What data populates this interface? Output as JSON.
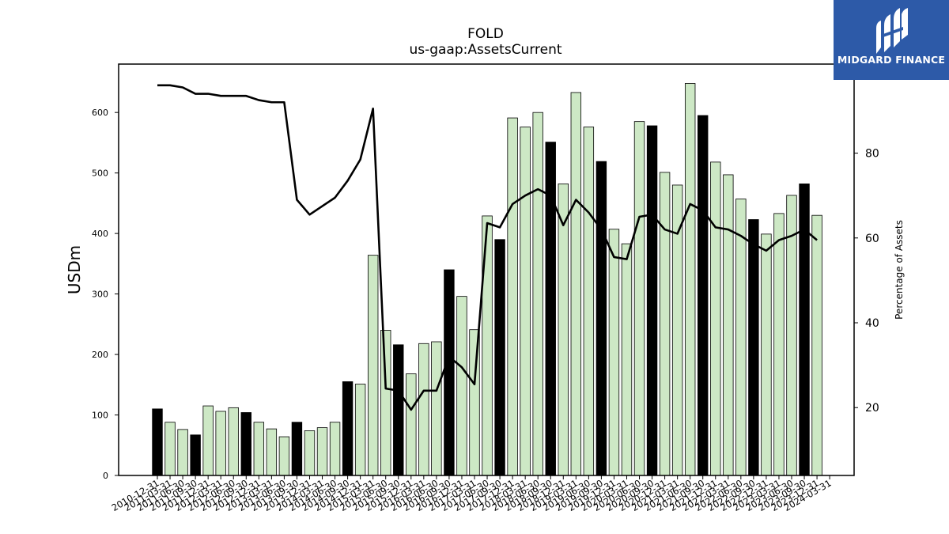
{
  "chart_data": {
    "type": "bar+line",
    "title": "FOLD",
    "subtitle": "us-gaap:AssetsCurrent",
    "ylabel": "USDm",
    "y2label": "Percentage of Assets",
    "ylim": [
      0,
      680
    ],
    "y2lim": [
      4,
      101
    ],
    "yticks": [
      0,
      100,
      200,
      300,
      400,
      500,
      600
    ],
    "y2ticks": [
      20,
      40,
      60,
      80
    ],
    "categories": [
      "2010-12-31",
      "2011-03-31",
      "2011-06-30",
      "2011-09-30",
      "2011-12-31",
      "2012-03-31",
      "2012-06-30",
      "2012-09-30",
      "2012-12-31",
      "2013-03-31",
      "2013-06-30",
      "2013-09-30",
      "2013-12-31",
      "2014-03-31",
      "2014-06-30",
      "2014-09-30",
      "2014-12-31",
      "2015-03-31",
      "2015-06-30",
      "2015-09-30",
      "2015-12-31",
      "2016-03-31",
      "2016-06-30",
      "2016-09-30",
      "2016-12-31",
      "2017-03-31",
      "2017-06-30",
      "2017-09-30",
      "2017-12-31",
      "2018-03-31",
      "2018-06-30",
      "2018-09-30",
      "2018-12-31",
      "2019-03-31",
      "2019-06-30",
      "2019-09-30",
      "2019-12-31",
      "2020-03-31",
      "2020-06-30",
      "2020-09-30",
      "2020-12-31",
      "2021-03-31",
      "2021-06-30",
      "2021-09-30",
      "2021-12-31",
      "2022-03-31",
      "2022-06-30",
      "2022-09-30",
      "2022-12-31",
      "2023-03-31",
      "2023-06-30",
      "2023-09-30",
      "2023-12-31",
      "2024-03-31"
    ],
    "values": [
      110,
      88,
      76,
      67,
      115,
      106,
      112,
      104,
      88,
      77,
      64,
      88,
      74,
      79,
      88,
      155,
      151,
      364,
      240,
      216,
      168,
      218,
      221,
      340,
      296,
      241,
      429,
      390,
      591,
      576,
      600,
      551,
      482,
      633,
      576,
      519,
      407,
      383,
      585,
      578,
      501,
      480,
      648,
      595,
      518,
      497,
      457,
      423,
      399,
      433,
      463,
      482,
      430,
      0
    ],
    "highlight": [
      true,
      false,
      false,
      true,
      false,
      false,
      false,
      true,
      false,
      false,
      false,
      true,
      false,
      false,
      false,
      true,
      false,
      false,
      false,
      true,
      false,
      false,
      false,
      true,
      false,
      false,
      false,
      true,
      false,
      false,
      false,
      true,
      false,
      false,
      false,
      true,
      false,
      false,
      false,
      true,
      false,
      false,
      false,
      true,
      false,
      false,
      false,
      true,
      false,
      false,
      false,
      true,
      false,
      false
    ],
    "line_pct": [
      96,
      96,
      95.5,
      94,
      94,
      93.5,
      93.5,
      93.5,
      92.5,
      92,
      92,
      69,
      65.5,
      67.5,
      69.5,
      73.5,
      78.5,
      90.5,
      24.5,
      24,
      19.5,
      24,
      24,
      32,
      29.5,
      25.5,
      63.5,
      62.5,
      68,
      70,
      71.5,
      70,
      63,
      69,
      66,
      62,
      55.5,
      55,
      65,
      65.5,
      62,
      61,
      68,
      66.5,
      62.5,
      62,
      60.5,
      58.5,
      57,
      59.5,
      60.5,
      62,
      59.5
    ],
    "colors": {
      "bar": "#cde8c5",
      "bar_highlight": "#000000",
      "line": "#000000"
    }
  },
  "logo": {
    "text": "MIDGARD FINANCE"
  }
}
